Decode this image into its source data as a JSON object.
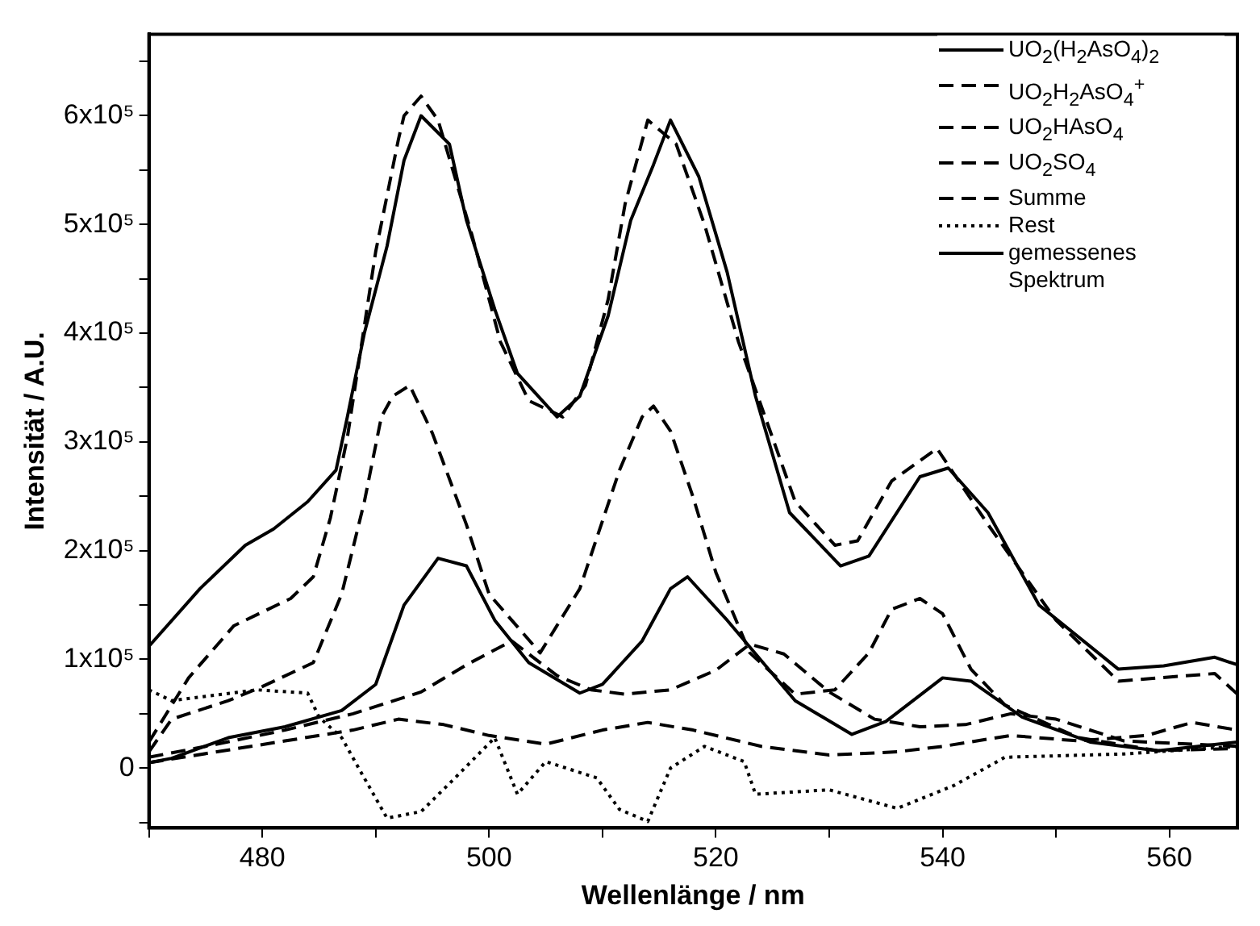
{
  "chart_data": {
    "type": "line",
    "xlabel": "Wellenlänge / nm",
    "ylabel": "Intensität / A.U.",
    "xlim": [
      470,
      566
    ],
    "ylim": [
      -55000,
      675000
    ],
    "xticks": [
      {
        "value": 470,
        "label": null
      },
      480,
      {
        "value": 490,
        "label": null
      },
      500,
      {
        "value": 510,
        "label": null
      },
      520,
      {
        "value": 530,
        "label": null
      },
      540,
      {
        "value": 550,
        "label": null
      },
      560
    ],
    "yticks": [
      {
        "value": -50000,
        "label": null
      },
      {
        "value": 0,
        "label": "0"
      },
      {
        "value": 50000,
        "label": null
      },
      {
        "value": 100000,
        "label": "1x10⁵"
      },
      {
        "value": 150000,
        "label": null
      },
      {
        "value": 200000,
        "label": "2x10⁵"
      },
      {
        "value": 250000,
        "label": null
      },
      {
        "value": 300000,
        "label": "3x10⁵"
      },
      {
        "value": 350000,
        "label": null
      },
      {
        "value": 400000,
        "label": "4x10⁵"
      },
      {
        "value": 450000,
        "label": null
      },
      {
        "value": 500000,
        "label": "5x10⁵"
      },
      {
        "value": 550000,
        "label": null
      },
      {
        "value": 600000,
        "label": "6x10⁵"
      },
      {
        "value": 650000,
        "label": null
      }
    ],
    "legend": "top right",
    "series": [
      {
        "name": "UO$_{2}$(H$_{2}$AsO$_{4}$)$_{2}$",
        "color": "#000000",
        "line_style": "solid",
        "x": [
          470,
          472,
          477,
          482,
          487,
          490,
          492.5,
          495.5,
          498,
          500.5,
          503.5,
          508,
          510,
          513.5,
          516,
          517.5,
          521,
          527,
          532,
          535,
          540,
          542.5,
          547,
          553,
          559,
          566
        ],
        "values": [
          5000,
          9000,
          28000,
          38000,
          53000,
          77000,
          150000,
          193000,
          186000,
          136000,
          97000,
          69000,
          77000,
          117000,
          165000,
          176000,
          136000,
          62000,
          31000,
          43000,
          83000,
          80000,
          47000,
          24000,
          16000,
          24000
        ]
      },
      {
        "name": "UO$_{2}$H$_{2}$AsO$_{4}$$^{+}$",
        "color": "#000000",
        "line_style": "dashed",
        "x": [
          470,
          472,
          477,
          480,
          484.5,
          487,
          489,
          490.5,
          491.5,
          493,
          494,
          495,
          498,
          500,
          504.5,
          508,
          511.5,
          513.5,
          514.5,
          516,
          518,
          520,
          523,
          527,
          530.5,
          533.5,
          535.5,
          538,
          540,
          542.5,
          545.5,
          552,
          559,
          566
        ],
        "values": [
          15000,
          45000,
          62000,
          75000,
          97000,
          160000,
          245000,
          323000,
          342000,
          352000,
          330000,
          308000,
          224000,
          160000,
          106000,
          165000,
          274000,
          323000,
          333000,
          310000,
          249000,
          180000,
          106000,
          68000,
          72000,
          106000,
          146000,
          156000,
          142000,
          91000,
          58000,
          28000,
          16000,
          18000
        ]
      },
      {
        "name": "UO$_{2}$HAsO$_{4}$",
        "color": "#000000",
        "line_style": "dashed",
        "x": [
          470,
          476,
          482,
          488,
          494,
          498,
          502,
          506,
          509,
          512,
          516,
          520,
          523,
          526,
          530,
          534,
          538,
          542,
          546,
          550,
          556,
          562,
          566
        ],
        "values": [
          10000,
          22000,
          35000,
          50000,
          70000,
          95000,
          117000,
          85000,
          72000,
          68000,
          72000,
          90000,
          114000,
          105000,
          70000,
          45000,
          38000,
          40000,
          50000,
          45000,
          25000,
          22000,
          20000
        ]
      },
      {
        "name": "UO$_{2}$SO$_{4}$",
        "color": "#000000",
        "line_style": "dashed",
        "x": [
          470,
          476,
          482,
          488,
          492,
          496,
          500,
          505,
          510,
          514,
          518,
          524,
          530,
          536,
          540,
          546,
          552,
          558,
          562,
          566
        ],
        "values": [
          5000,
          15000,
          25000,
          35000,
          45000,
          40000,
          30000,
          22000,
          35000,
          42000,
          35000,
          20000,
          12000,
          15000,
          20000,
          30000,
          25000,
          30000,
          42000,
          35000
        ]
      },
      {
        "name": "Summe",
        "color": "#000000",
        "line_style": "dashed",
        "x": [
          470,
          473.5,
          477.5,
          482.5,
          484.5,
          486,
          487,
          487.5,
          490,
          492,
          492.5,
          494,
          495.5,
          498.5,
          501,
          503.5,
          506.5,
          508.5,
          510.5,
          512,
          514,
          516.5,
          519,
          522,
          527,
          530.5,
          532.5,
          535.5,
          539.5,
          544,
          550,
          555.5,
          564,
          566
        ],
        "values": [
          24000,
          83000,
          131000,
          156000,
          176000,
          230000,
          279000,
          304000,
          475000,
          578000,
          600000,
          618000,
          596000,
          490000,
          392000,
          338000,
          323000,
          352000,
          431000,
          519000,
          596000,
          574000,
          500000,
          392000,
          245000,
          205000,
          209000,
          264000,
          294000,
          224000,
          136000,
          80000,
          87000,
          68000
        ]
      },
      {
        "name": "Rest",
        "color": "#000000",
        "line_style": "dotted",
        "x": [
          470,
          472,
          479.5,
          484,
          485,
          487,
          488.5,
          491,
          494,
          497,
          500.5,
          502.5,
          505,
          509.5,
          511.5,
          514,
          516,
          519,
          522.5,
          523.5,
          530,
          536,
          541,
          545.5,
          556,
          566
        ],
        "values": [
          72000,
          62000,
          72000,
          69000,
          47000,
          28000,
          0,
          -46000,
          -40000,
          -9000,
          28000,
          -24000,
          6000,
          -9000,
          -38000,
          -49000,
          0,
          20000,
          6000,
          -24000,
          -20000,
          -37000,
          -16000,
          10000,
          13000,
          20000
        ]
      },
      {
        "name": "gemessenes Spektrum",
        "color": "#000000",
        "line_style": "solid",
        "x": [
          470,
          474.5,
          478.5,
          481,
          484,
          486.5,
          487.5,
          489,
          491,
          492.5,
          494,
          496.5,
          498,
          500.5,
          502.5,
          506,
          508,
          510.5,
          512.5,
          514.5,
          516,
          518.5,
          521,
          523.5,
          526.5,
          531,
          533.5,
          538,
          540.5,
          544,
          548.5,
          555.5,
          559.5,
          564,
          566
        ],
        "values": [
          112000,
          165000,
          205000,
          220000,
          245000,
          274000,
          323000,
          400000,
          480000,
          559000,
          600000,
          574000,
          504000,
          422000,
          363000,
          323000,
          342000,
          416000,
          504000,
          555000,
          596000,
          544000,
          456000,
          342000,
          235000,
          186000,
          195000,
          268000,
          276000,
          235000,
          150000,
          91000,
          94000,
          102000,
          95000
        ]
      }
    ]
  }
}
